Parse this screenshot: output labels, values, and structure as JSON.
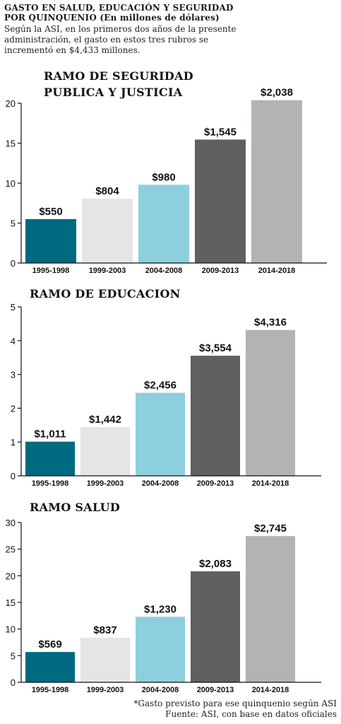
{
  "header": {
    "title_line1": "GASTO EN SALUD, EDUCACIÓN Y SEGURIDAD",
    "title_line2": "POR QUINQUENIO (En millones de dólares)",
    "desc_line1": "Según la ASI, en los primeros dos años de la presente",
    "desc_line2": "administración, el gasto en estos tres rubros se",
    "desc_line3": "incrementó en $4,433 millones."
  },
  "colors": [
    "#006a80",
    "#e5e5e7",
    "#8ecfdd",
    "#5f6062",
    "#b2b3b5"
  ],
  "chart_data": [
    {
      "type": "bar",
      "title": [
        "RAMO DE SEGURIDAD",
        "PUBLICA Y JUSTICIA"
      ],
      "categories": [
        "1995-1998",
        "1999-2003",
        "2004-2008",
        "2009-2013",
        "2014-2018"
      ],
      "values": [
        5.5,
        8.04,
        9.8,
        15.45,
        20.38
      ],
      "data_labels": [
        "$550",
        "$804",
        "$980",
        "$1,545",
        "$2,038"
      ],
      "yticks": [
        0,
        5,
        10,
        15,
        20
      ],
      "ylim": [
        0,
        20
      ],
      "grid": false
    },
    {
      "type": "bar",
      "title": [
        "RAMO DE EDUCACION"
      ],
      "categories": [
        "1995-1998",
        "1999-2003",
        "2004-2008",
        "2009-2013",
        "2014-2018"
      ],
      "values": [
        1.011,
        1.442,
        2.456,
        3.554,
        4.316
      ],
      "data_labels": [
        "$1,011",
        "$1,442",
        "$2,456",
        "$3,554",
        "$4,316"
      ],
      "yticks": [
        0,
        1,
        2,
        3,
        4,
        5
      ],
      "ylim": [
        0,
        5
      ],
      "grid": false
    },
    {
      "type": "bar",
      "title": [
        "RAMO SALUD"
      ],
      "categories": [
        "1995-1998",
        "1999-2003",
        "2004-2008",
        "2009-2013",
        "2014-2018"
      ],
      "values": [
        5.69,
        8.37,
        12.3,
        20.83,
        27.45
      ],
      "data_labels": [
        "$569",
        "$837",
        "$1,230",
        "$2,083",
        "$2,745"
      ],
      "yticks": [
        0,
        5,
        10,
        15,
        20,
        25,
        30
      ],
      "ylim": [
        0,
        30
      ],
      "grid": false
    }
  ],
  "footer": {
    "note": "*Gasto previsto para ese quinquenio según ASI",
    "source": "Fuente: ASI, con base en datos oficiales"
  }
}
